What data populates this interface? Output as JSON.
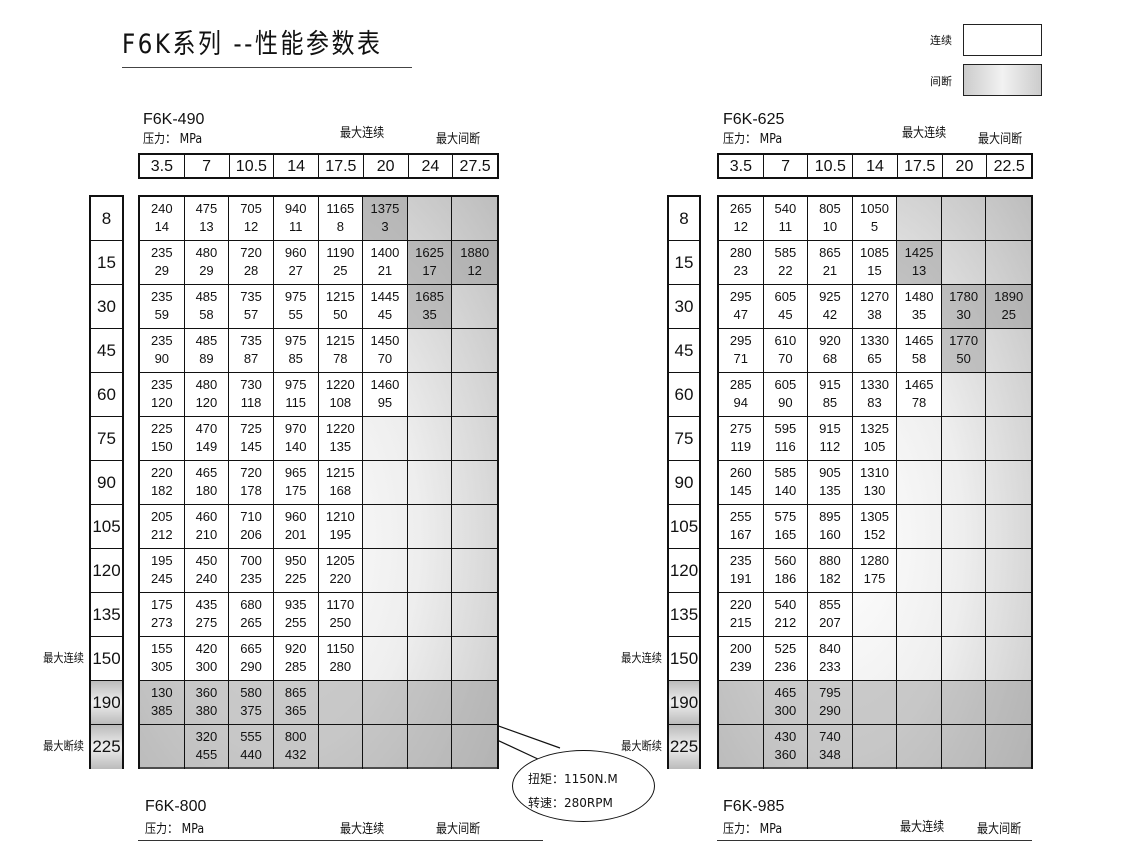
{
  "title": "F6K系列 --性能参数表",
  "legend": {
    "continuous": "连续",
    "intermittent": "间断",
    "colors": {
      "continuous": "#ffffff",
      "intermittent": "#c0c0c0"
    }
  },
  "callout": {
    "torque": "扭矩：1150N.M",
    "speed": "转速：280RPM"
  },
  "tables": [
    {
      "model": "F6K-490",
      "pressure_label": "压力： MPa",
      "max_continuous": "最大连续",
      "max_intermittent": "最大间断",
      "pressures": [
        "3.5",
        "7",
        "10.5",
        "14",
        "17.5",
        "20",
        "24",
        "27.5"
      ],
      "flows": [
        "8",
        "15",
        "30",
        "45",
        "60",
        "75",
        "90",
        "105",
        "120",
        "135",
        "150",
        "190",
        "225"
      ],
      "row_side_labels": {
        "150": "最大连续",
        "225": "最大断续"
      },
      "gray_flow_rows": [
        "190",
        "225"
      ],
      "intermittent_cells": [
        [
          0,
          5
        ],
        [
          1,
          6
        ],
        [
          1,
          7
        ],
        [
          2,
          6
        ]
      ],
      "cells": [
        [
          [
            "240",
            "14"
          ],
          [
            "475",
            "13"
          ],
          [
            "705",
            "12"
          ],
          [
            "940",
            "11"
          ],
          [
            "1165",
            "8"
          ],
          [
            "1375",
            "3"
          ],
          null,
          null
        ],
        [
          [
            "235",
            "29"
          ],
          [
            "480",
            "29"
          ],
          [
            "720",
            "28"
          ],
          [
            "960",
            "27"
          ],
          [
            "1190",
            "25"
          ],
          [
            "1400",
            "21"
          ],
          [
            "1625",
            "17"
          ],
          [
            "1880",
            "12"
          ]
        ],
        [
          [
            "235",
            "59"
          ],
          [
            "485",
            "58"
          ],
          [
            "735",
            "57"
          ],
          [
            "975",
            "55"
          ],
          [
            "1215",
            "50"
          ],
          [
            "1445",
            "45"
          ],
          [
            "1685",
            "35"
          ],
          null
        ],
        [
          [
            "235",
            "90"
          ],
          [
            "485",
            "89"
          ],
          [
            "735",
            "87"
          ],
          [
            "975",
            "85"
          ],
          [
            "1215",
            "78"
          ],
          [
            "1450",
            "70"
          ],
          null,
          null
        ],
        [
          [
            "235",
            "120"
          ],
          [
            "480",
            "120"
          ],
          [
            "730",
            "118"
          ],
          [
            "975",
            "115"
          ],
          [
            "1220",
            "108"
          ],
          [
            "1460",
            "95"
          ],
          null,
          null
        ],
        [
          [
            "225",
            "150"
          ],
          [
            "470",
            "149"
          ],
          [
            "725",
            "145"
          ],
          [
            "970",
            "140"
          ],
          [
            "1220",
            "135"
          ],
          null,
          null,
          null
        ],
        [
          [
            "220",
            "182"
          ],
          [
            "465",
            "180"
          ],
          [
            "720",
            "178"
          ],
          [
            "965",
            "175"
          ],
          [
            "1215",
            "168"
          ],
          null,
          null,
          null
        ],
        [
          [
            "205",
            "212"
          ],
          [
            "460",
            "210"
          ],
          [
            "710",
            "206"
          ],
          [
            "960",
            "201"
          ],
          [
            "1210",
            "195"
          ],
          null,
          null,
          null
        ],
        [
          [
            "195",
            "245"
          ],
          [
            "450",
            "240"
          ],
          [
            "700",
            "235"
          ],
          [
            "950",
            "225"
          ],
          [
            "1205",
            "220"
          ],
          null,
          null,
          null
        ],
        [
          [
            "175",
            "273"
          ],
          [
            "435",
            "275"
          ],
          [
            "680",
            "265"
          ],
          [
            "935",
            "255"
          ],
          [
            "1170",
            "250"
          ],
          null,
          null,
          null
        ],
        [
          [
            "155",
            "305"
          ],
          [
            "420",
            "300"
          ],
          [
            "665",
            "290"
          ],
          [
            "920",
            "285"
          ],
          [
            "1150",
            "280"
          ],
          null,
          null,
          null
        ],
        [
          [
            "130",
            "385"
          ],
          [
            "360",
            "380"
          ],
          [
            "580",
            "375"
          ],
          [
            "865",
            "365"
          ],
          null,
          null,
          null,
          null
        ],
        [
          null,
          [
            "320",
            "455"
          ],
          [
            "555",
            "440"
          ],
          [
            "800",
            "432"
          ],
          null,
          null,
          null,
          null
        ]
      ]
    },
    {
      "model": "F6K-625",
      "pressure_label": "压力： MPa",
      "max_continuous": "最大连续",
      "max_intermittent": "最大间断",
      "pressures": [
        "3.5",
        "7",
        "10.5",
        "14",
        "17.5",
        "20",
        "22.5"
      ],
      "flows": [
        "8",
        "15",
        "30",
        "45",
        "60",
        "75",
        "90",
        "105",
        "120",
        "135",
        "150",
        "190",
        "225"
      ],
      "row_side_labels": {
        "150": "最大连续",
        "225": "最大断续"
      },
      "gray_flow_rows": [
        "190",
        "225"
      ],
      "intermittent_cells": [
        [
          1,
          4
        ],
        [
          2,
          5
        ],
        [
          2,
          6
        ],
        [
          3,
          5
        ]
      ],
      "cells": [
        [
          [
            "265",
            "12"
          ],
          [
            "540",
            "11"
          ],
          [
            "805",
            "10"
          ],
          [
            "1050",
            "5"
          ],
          null,
          null,
          null
        ],
        [
          [
            "280",
            "23"
          ],
          [
            "585",
            "22"
          ],
          [
            "865",
            "21"
          ],
          [
            "1085",
            "15"
          ],
          [
            "1425",
            "13"
          ],
          null,
          null
        ],
        [
          [
            "295",
            "47"
          ],
          [
            "605",
            "45"
          ],
          [
            "925",
            "42"
          ],
          [
            "1270",
            "38"
          ],
          [
            "1480",
            "35"
          ],
          [
            "1780",
            "30"
          ],
          [
            "1890",
            "25"
          ]
        ],
        [
          [
            "295",
            "71"
          ],
          [
            "610",
            "70"
          ],
          [
            "920",
            "68"
          ],
          [
            "1330",
            "65"
          ],
          [
            "1465",
            "58"
          ],
          [
            "1770",
            "50"
          ],
          null
        ],
        [
          [
            "285",
            "94"
          ],
          [
            "605",
            "90"
          ],
          [
            "915",
            "85"
          ],
          [
            "1330",
            "83"
          ],
          [
            "1465",
            "78"
          ],
          null,
          null
        ],
        [
          [
            "275",
            "119"
          ],
          [
            "595",
            "116"
          ],
          [
            "915",
            "112"
          ],
          [
            "1325",
            "105"
          ],
          null,
          null,
          null
        ],
        [
          [
            "260",
            "145"
          ],
          [
            "585",
            "140"
          ],
          [
            "905",
            "135"
          ],
          [
            "1310",
            "130"
          ],
          null,
          null,
          null
        ],
        [
          [
            "255",
            "167"
          ],
          [
            "575",
            "165"
          ],
          [
            "895",
            "160"
          ],
          [
            "1305",
            "152"
          ],
          null,
          null,
          null
        ],
        [
          [
            "235",
            "191"
          ],
          [
            "560",
            "186"
          ],
          [
            "880",
            "182"
          ],
          [
            "1280",
            "175"
          ],
          null,
          null,
          null
        ],
        [
          [
            "220",
            "215"
          ],
          [
            "540",
            "212"
          ],
          [
            "855",
            "207"
          ],
          null,
          null,
          null,
          null
        ],
        [
          [
            "200",
            "239"
          ],
          [
            "525",
            "236"
          ],
          [
            "840",
            "233"
          ],
          null,
          null,
          null,
          null
        ],
        [
          null,
          [
            "465",
            "300"
          ],
          [
            "795",
            "290"
          ],
          null,
          null,
          null,
          null
        ],
        [
          null,
          [
            "430",
            "360"
          ],
          [
            "740",
            "348"
          ],
          null,
          null,
          null,
          null
        ]
      ]
    }
  ],
  "footer_tables": [
    {
      "model": "F6K-800",
      "pressure_label": "压力： MPa",
      "max_continuous": "最大连续",
      "max_intermittent": "最大间断"
    },
    {
      "model": "F6K-985",
      "pressure_label": "压力： MPa",
      "max_continuous": "最大连续",
      "max_intermittent": "最大间断"
    }
  ]
}
